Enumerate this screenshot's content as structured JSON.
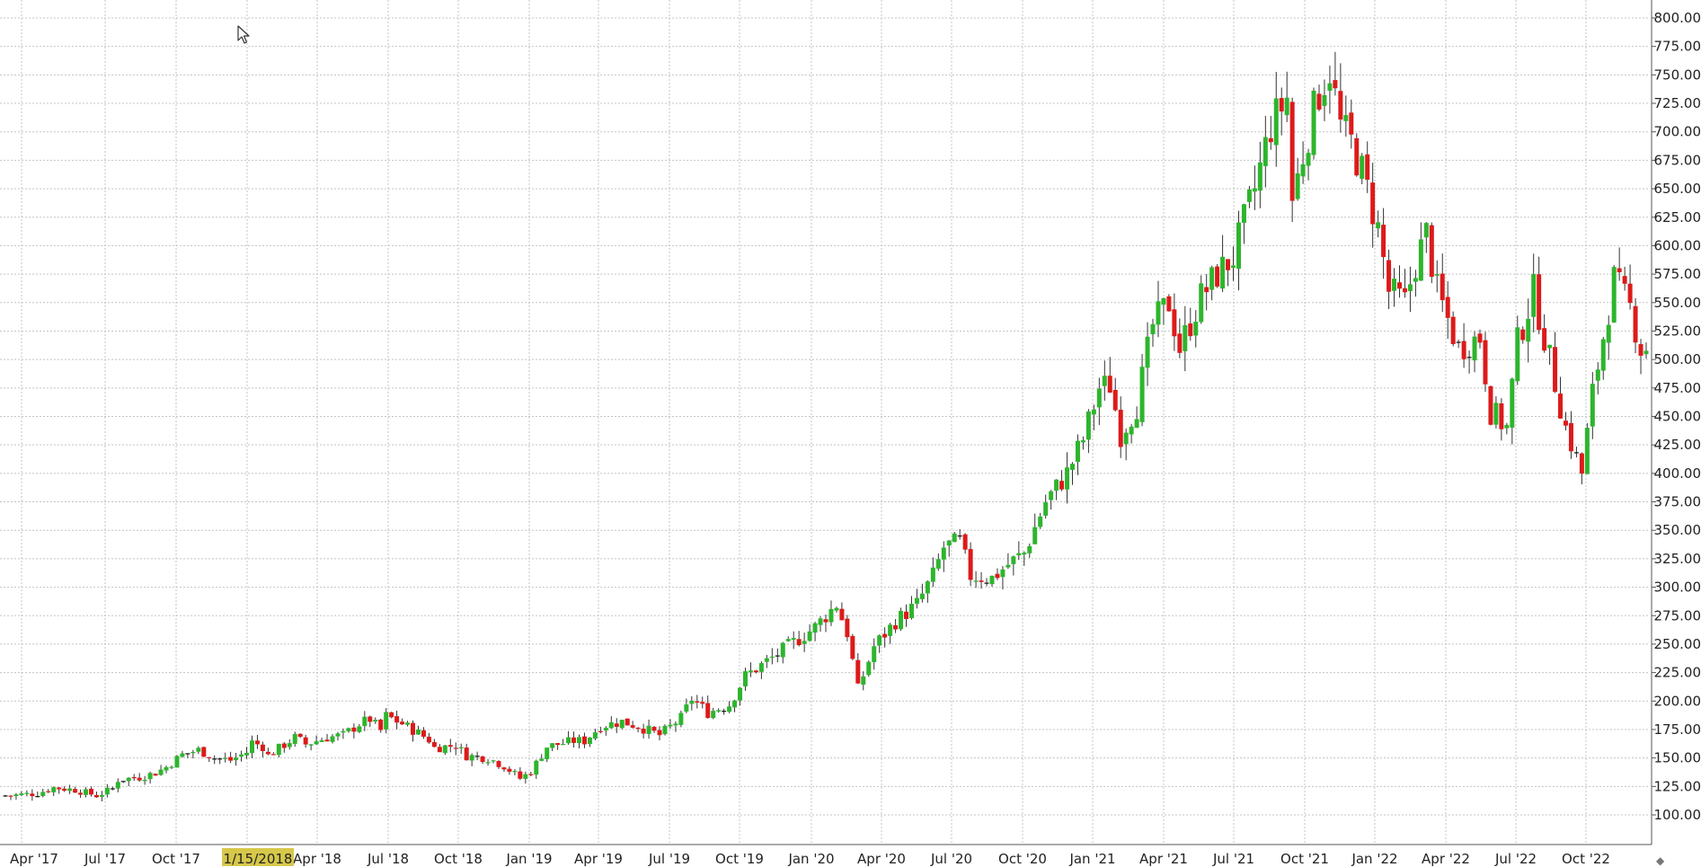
{
  "colors": {
    "up": "#2db52d",
    "down": "#dd1a1a",
    "neutral": "#111111",
    "grid": "#c4c4c4",
    "axis": "#555555",
    "cursor_date_bg": "#d6c84a"
  },
  "cursor_date": "1/15/2018",
  "chart_data": {
    "type": "candlestick",
    "title": "",
    "xlabel": "",
    "ylabel": "",
    "interval": "weekly",
    "ylim": [
      75,
      810
    ],
    "yticks": [
      100,
      125,
      150,
      175,
      200,
      225,
      250,
      275,
      300,
      325,
      350,
      375,
      400,
      425,
      450,
      475,
      500,
      525,
      550,
      575,
      600,
      625,
      650,
      675,
      700,
      725,
      750,
      775,
      800
    ],
    "ytick_labels": [
      "100.00",
      "125.00",
      "150.00",
      "175.00",
      "200.00",
      "225.00",
      "250.00",
      "275.00",
      "300.00",
      "325.00",
      "350.00",
      "375.00",
      "400.00",
      "425.00",
      "450.00",
      "475.00",
      "500.00",
      "525.00",
      "550.00",
      "575.00",
      "600.00",
      "625.00",
      "650.00",
      "675.00",
      "700.00",
      "725.00",
      "750.00",
      "775.00",
      "800.00"
    ],
    "xticks": [
      "Apr '17",
      "Jul '17",
      "Oct '17",
      "Jan '18",
      "Apr '18",
      "Jul '18",
      "Oct '18",
      "Jan '19",
      "Apr '19",
      "Jul '19",
      "Oct '19",
      "Jan '20",
      "Apr '20",
      "Jul '20",
      "Oct '20",
      "Jan '21",
      "Apr '21",
      "Jul '21",
      "Oct '21",
      "Jan '22",
      "Apr '22",
      "Jul '22",
      "Oct '22"
    ],
    "grid": true,
    "close_series": [
      [
        "2017-03-06",
        117
      ],
      [
        "2017-04-10",
        119
      ],
      [
        "2017-05-01",
        124
      ],
      [
        "2017-05-29",
        122
      ],
      [
        "2017-06-26",
        117
      ],
      [
        "2017-07-17",
        123
      ],
      [
        "2017-07-24",
        131
      ],
      [
        "2017-08-21",
        133
      ],
      [
        "2017-09-11",
        137
      ],
      [
        "2017-09-25",
        142
      ],
      [
        "2017-10-16",
        153
      ],
      [
        "2017-11-06",
        157
      ],
      [
        "2017-11-27",
        150
      ],
      [
        "2017-12-18",
        148
      ],
      [
        "2018-01-08",
        155
      ],
      [
        "2018-01-15",
        164
      ],
      [
        "2018-01-29",
        160
      ],
      [
        "2018-02-05",
        152
      ],
      [
        "2018-03-12",
        168
      ],
      [
        "2018-03-26",
        162
      ],
      [
        "2018-04-23",
        168
      ],
      [
        "2018-05-14",
        170
      ],
      [
        "2018-06-04",
        180
      ],
      [
        "2018-06-18",
        184
      ],
      [
        "2018-07-02",
        174
      ],
      [
        "2018-07-09",
        187
      ],
      [
        "2018-07-30",
        180
      ],
      [
        "2018-08-20",
        172
      ],
      [
        "2018-09-03",
        166
      ],
      [
        "2018-09-10",
        159
      ],
      [
        "2018-10-08",
        161
      ],
      [
        "2018-10-22",
        152
      ],
      [
        "2018-11-19",
        150
      ],
      [
        "2018-12-10",
        143
      ],
      [
        "2018-12-31",
        132
      ],
      [
        "2019-01-14",
        138
      ],
      [
        "2019-02-04",
        160
      ],
      [
        "2019-03-11",
        165
      ],
      [
        "2019-03-25",
        165
      ],
      [
        "2019-04-15",
        178
      ],
      [
        "2019-05-13",
        182
      ],
      [
        "2019-06-03",
        178
      ],
      [
        "2019-07-01",
        170
      ],
      [
        "2019-07-29",
        185
      ],
      [
        "2019-08-12",
        202
      ],
      [
        "2019-09-02",
        190
      ],
      [
        "2019-09-30",
        197
      ],
      [
        "2019-10-21",
        222
      ],
      [
        "2019-11-25",
        238
      ],
      [
        "2019-12-16",
        248
      ],
      [
        "2020-01-20",
        265
      ],
      [
        "2020-02-17",
        285
      ],
      [
        "2020-03-02",
        260
      ],
      [
        "2020-03-16",
        210
      ],
      [
        "2020-04-06",
        248
      ],
      [
        "2020-05-04",
        270
      ],
      [
        "2020-06-01",
        285
      ],
      [
        "2020-06-22",
        310
      ],
      [
        "2020-07-06",
        335
      ],
      [
        "2020-07-27",
        340
      ],
      [
        "2020-08-10",
        310
      ],
      [
        "2020-09-07",
        308
      ],
      [
        "2020-09-28",
        320
      ],
      [
        "2020-10-19",
        330
      ],
      [
        "2020-11-16",
        375
      ],
      [
        "2020-12-14",
        400
      ],
      [
        "2021-01-04",
        430
      ],
      [
        "2021-01-25",
        475
      ],
      [
        "2021-02-08",
        478
      ],
      [
        "2021-02-22",
        435
      ],
      [
        "2021-03-15",
        460
      ],
      [
        "2021-04-05",
        530
      ],
      [
        "2021-04-26",
        550
      ],
      [
        "2021-05-10",
        510
      ],
      [
        "2021-06-07",
        555
      ],
      [
        "2021-06-28",
        575
      ],
      [
        "2021-07-19",
        590
      ],
      [
        "2021-08-16",
        650
      ],
      [
        "2021-09-06",
        705
      ],
      [
        "2021-09-27",
        730
      ],
      [
        "2021-10-04",
        640
      ],
      [
        "2021-10-25",
        700
      ],
      [
        "2021-11-08",
        735
      ],
      [
        "2021-11-22",
        755
      ],
      [
        "2021-12-06",
        705
      ],
      [
        "2021-12-20",
        690
      ],
      [
        "2022-01-03",
        665
      ],
      [
        "2022-01-24",
        615
      ],
      [
        "2022-02-07",
        560
      ],
      [
        "2022-02-28",
        550
      ],
      [
        "2022-03-14",
        585
      ],
      [
        "2022-03-28",
        610
      ],
      [
        "2022-04-11",
        560
      ],
      [
        "2022-05-09",
        510
      ],
      [
        "2022-06-06",
        520
      ],
      [
        "2022-06-20",
        455
      ],
      [
        "2022-07-11",
        440
      ],
      [
        "2022-07-25",
        515
      ],
      [
        "2022-08-15",
        560
      ],
      [
        "2022-09-05",
        500
      ],
      [
        "2022-09-26",
        440
      ],
      [
        "2022-10-17",
        400
      ],
      [
        "2022-10-31",
        470
      ],
      [
        "2022-11-28",
        570
      ],
      [
        "2022-12-19",
        545
      ],
      [
        "2023-01-02",
        510
      ]
    ]
  }
}
